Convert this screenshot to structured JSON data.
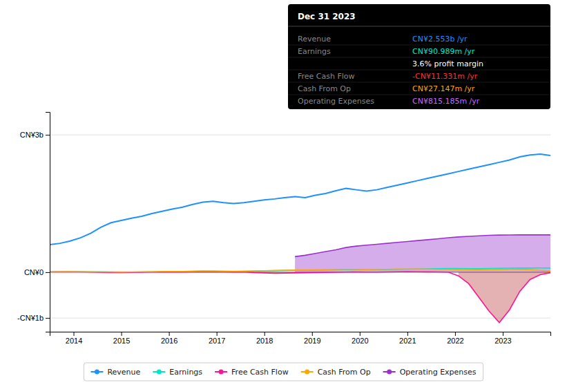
{
  "chart_data": {
    "type": "line",
    "x": [
      2013.5,
      2013.7142857,
      2013.9285714,
      2014.1428571,
      2014.3571429,
      2014.5714286,
      2014.7857143,
      2015.0,
      2015.2142857,
      2015.4285714,
      2015.6428571,
      2015.8571429,
      2016.0714286,
      2016.2857143,
      2016.5,
      2016.7142857,
      2016.9285714,
      2017.1428571,
      2017.3571429,
      2017.5714286,
      2017.7857143,
      2018.0,
      2018.2142857,
      2018.4285714,
      2018.6428571,
      2018.8571429,
      2019.0714286,
      2019.2857143,
      2019.5,
      2019.7142857,
      2019.9285714,
      2020.1428571,
      2020.3571429,
      2020.5714286,
      2020.7857143,
      2021.0,
      2021.2142857,
      2021.4285714,
      2021.6428571,
      2021.8571429,
      2022.0714286,
      2022.2857143,
      2022.5,
      2022.7142857,
      2022.9285714,
      2023.1428571,
      2023.3571429,
      2023.5714286,
      2023.7857143,
      2024.0
    ],
    "xlim": [
      2013.5,
      2024.0
    ],
    "xticks": [
      2014,
      2015,
      2016,
      2017,
      2018,
      2019,
      2020,
      2021,
      2022,
      2023
    ],
    "ylim": [
      -1300000000,
      3500000000
    ],
    "yticks": [
      {
        "value": -1000000000,
        "label": "-CN¥1b"
      },
      {
        "value": 0,
        "label": "CN¥0"
      },
      {
        "value": 3000000000,
        "label": "CN¥3b"
      }
    ],
    "grid": true,
    "legend": "bottom",
    "series": [
      {
        "name": "Revenue",
        "color": "#1e90ff",
        "values": [
          600000000,
          630000000,
          680000000,
          750000000,
          850000000,
          980000000,
          1080000000,
          1130000000,
          1180000000,
          1220000000,
          1280000000,
          1330000000,
          1380000000,
          1420000000,
          1480000000,
          1530000000,
          1550000000,
          1520000000,
          1500000000,
          1520000000,
          1550000000,
          1580000000,
          1600000000,
          1630000000,
          1650000000,
          1630000000,
          1680000000,
          1720000000,
          1780000000,
          1830000000,
          1800000000,
          1770000000,
          1800000000,
          1850000000,
          1900000000,
          1950000000,
          2000000000,
          2050000000,
          2100000000,
          2150000000,
          2200000000,
          2250000000,
          2300000000,
          2350000000,
          2400000000,
          2450000000,
          2520000000,
          2560000000,
          2580000000,
          2550000000
        ]
      },
      {
        "name": "Earnings",
        "color": "#00e5cc",
        "values": [
          8000000,
          10000000,
          15000000,
          12000000,
          10000000,
          8000000,
          5000000,
          3000000,
          2000000,
          5000000,
          8000000,
          12000000,
          10000000,
          12000000,
          18000000,
          22000000,
          20000000,
          18000000,
          15000000,
          18000000,
          22000000,
          28000000,
          33000000,
          38000000,
          42000000,
          40000000,
          44000000,
          48000000,
          52000000,
          58000000,
          54000000,
          50000000,
          52000000,
          56000000,
          62000000,
          66000000,
          70000000,
          74000000,
          78000000,
          82000000,
          80000000,
          78000000,
          76000000,
          80000000,
          84000000,
          88000000,
          91000000,
          90000000,
          92000000,
          91000000
        ]
      },
      {
        "name": "Free Cash Flow",
        "color": "#ff1493",
        "values": [
          5000000,
          8000000,
          10000000,
          5000000,
          2000000,
          -5000000,
          -8000000,
          -10000000,
          -5000000,
          -2000000,
          2000000,
          5000000,
          3000000,
          4000000,
          6000000,
          10000000,
          8000000,
          5000000,
          3000000,
          5000000,
          -8000000,
          -15000000,
          -25000000,
          -20000000,
          -15000000,
          -12000000,
          -8000000,
          -4000000,
          -2000000,
          2000000,
          5000000,
          3000000,
          2000000,
          5000000,
          10000000,
          12000000,
          10000000,
          8000000,
          5000000,
          2000000,
          -80000000,
          -250000000,
          -550000000,
          -850000000,
          -1100000000,
          -820000000,
          -420000000,
          -160000000,
          -55000000,
          -11000000
        ]
      },
      {
        "name": "Cash From Op",
        "color": "#ffa500",
        "values": [
          5000000,
          8000000,
          12000000,
          10000000,
          8000000,
          6000000,
          5000000,
          4000000,
          6000000,
          9000000,
          12000000,
          18000000,
          16000000,
          18000000,
          22000000,
          28000000,
          26000000,
          23000000,
          20000000,
          23000000,
          28000000,
          33000000,
          38000000,
          43000000,
          48000000,
          46000000,
          50000000,
          54000000,
          58000000,
          63000000,
          60000000,
          56000000,
          58000000,
          63000000,
          68000000,
          70000000,
          68000000,
          65000000,
          62000000,
          58000000,
          54000000,
          50000000,
          48000000,
          52000000,
          55000000,
          58000000,
          60000000,
          55000000,
          40000000,
          27000000
        ]
      },
      {
        "name": "Operating Expenses",
        "color": "#9932cc",
        "type": "area",
        "values": [
          null,
          null,
          null,
          null,
          null,
          null,
          null,
          null,
          null,
          null,
          null,
          null,
          null,
          null,
          null,
          null,
          null,
          null,
          null,
          null,
          null,
          null,
          null,
          null,
          340000000,
          370000000,
          410000000,
          450000000,
          490000000,
          540000000,
          570000000,
          590000000,
          610000000,
          630000000,
          650000000,
          670000000,
          690000000,
          710000000,
          730000000,
          752000000,
          770000000,
          782000000,
          795000000,
          806000000,
          811000000,
          814000000,
          815000000,
          815000000,
          815000000,
          815000000
        ]
      }
    ],
    "info_box": {
      "title": "Dec 31 2023",
      "rows": [
        {
          "label": "Revenue",
          "value": "CN¥2.553b /yr",
          "color": "#1e90ff"
        },
        {
          "label": "Earnings",
          "value": "CN¥90.989m /yr",
          "color": "#00e5cc"
        },
        {
          "value": "3.6% profit margin",
          "color": "#ffffff"
        },
        {
          "label": "Free Cash Flow",
          "value": "-CN¥11.331m /yr",
          "color": "#ff3333"
        },
        {
          "label": "Cash From Op",
          "value": "CN¥27.147m /yr",
          "color": "#ffa500"
        },
        {
          "label": "Operating Expenses",
          "value": "CN¥815.185m /yr",
          "color": "#cc66ff"
        }
      ]
    }
  }
}
